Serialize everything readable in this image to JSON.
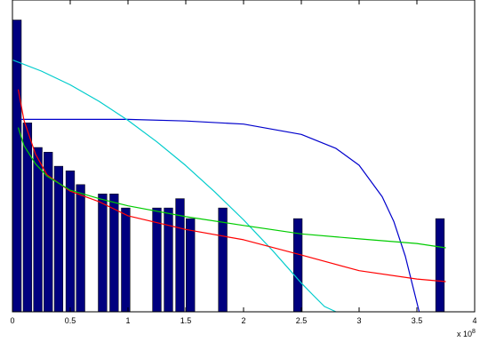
{
  "chart_data": {
    "type": "bar",
    "title": "",
    "xlabel": "",
    "ylabel": "",
    "x_scale_label": "x 10",
    "x_scale_exponent": "8",
    "xlim": [
      0,
      4
    ],
    "ylim": [
      0,
      1
    ],
    "grid": false,
    "xticks": [
      {
        "value": 0,
        "label": "0"
      },
      {
        "value": 0.5,
        "label": "0.5"
      },
      {
        "value": 1,
        "label": "1"
      },
      {
        "value": 1.5,
        "label": "1.5"
      },
      {
        "value": 2,
        "label": "2"
      },
      {
        "value": 2.5,
        "label": "2.5"
      },
      {
        "value": 3,
        "label": "3"
      },
      {
        "value": 3.5,
        "label": "3.5"
      },
      {
        "value": 4,
        "label": "4"
      }
    ],
    "bar_color": "#00007f",
    "bar_width": 0.075,
    "bars": [
      {
        "x": 0.04,
        "y": 0.936
      },
      {
        "x": 0.13,
        "y": 0.606
      },
      {
        "x": 0.22,
        "y": 0.527
      },
      {
        "x": 0.31,
        "y": 0.512
      },
      {
        "x": 0.4,
        "y": 0.467
      },
      {
        "x": 0.5,
        "y": 0.452
      },
      {
        "x": 0.59,
        "y": 0.408
      },
      {
        "x": 0.78,
        "y": 0.378
      },
      {
        "x": 0.88,
        "y": 0.378
      },
      {
        "x": 0.98,
        "y": 0.333
      },
      {
        "x": 1.25,
        "y": 0.333
      },
      {
        "x": 1.35,
        "y": 0.333
      },
      {
        "x": 1.45,
        "y": 0.363
      },
      {
        "x": 1.54,
        "y": 0.299
      },
      {
        "x": 1.82,
        "y": 0.333
      },
      {
        "x": 2.47,
        "y": 0.299
      },
      {
        "x": 3.7,
        "y": 0.299
      }
    ],
    "series": [
      {
        "color": "#0000cc",
        "x": [
          0.07,
          0.5,
          1.0,
          1.5,
          2.0,
          2.5,
          2.8,
          3.0,
          3.2,
          3.3,
          3.4,
          3.46,
          3.52
        ],
        "y": [
          0.617,
          0.617,
          0.617,
          0.612,
          0.602,
          0.569,
          0.524,
          0.47,
          0.369,
          0.29,
          0.178,
          0.089,
          0.0
        ]
      },
      {
        "color": "#00cccc",
        "x": [
          0.0,
          0.25,
          0.5,
          0.75,
          1.0,
          1.25,
          1.5,
          1.75,
          2.0,
          2.25,
          2.5,
          2.6,
          2.7,
          2.8
        ],
        "y": [
          0.808,
          0.772,
          0.728,
          0.675,
          0.614,
          0.545,
          0.469,
          0.385,
          0.295,
          0.197,
          0.092,
          0.054,
          0.017,
          0.0
        ]
      },
      {
        "color": "#ff0000",
        "x": [
          0.05,
          0.1,
          0.2,
          0.3,
          0.5,
          0.75,
          1.0,
          1.5,
          2.0,
          2.5,
          3.0,
          3.5,
          3.75
        ],
        "y": [
          0.713,
          0.614,
          0.505,
          0.439,
          0.387,
          0.353,
          0.308,
          0.264,
          0.231,
          0.182,
          0.132,
          0.105,
          0.097
        ]
      },
      {
        "color": "#00cc00",
        "x": [
          0.05,
          0.1,
          0.2,
          0.3,
          0.5,
          0.75,
          1.0,
          1.5,
          2.0,
          2.5,
          3.0,
          3.5,
          3.75
        ],
        "y": [
          0.591,
          0.533,
          0.474,
          0.435,
          0.39,
          0.363,
          0.34,
          0.305,
          0.277,
          0.25,
          0.234,
          0.219,
          0.205
        ]
      }
    ]
  }
}
